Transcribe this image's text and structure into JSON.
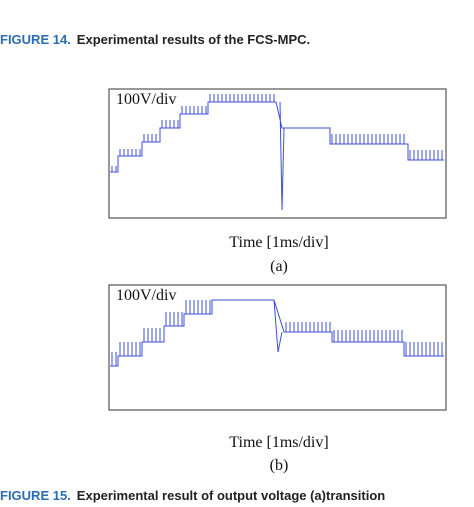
{
  "figure_14": {
    "label": "FIGURE 14.",
    "caption": "Experimental results of the FCS-MPC."
  },
  "panels": [
    {
      "scale": "100V/div",
      "x_label": "Time [1ms/div]",
      "tag": "(a)"
    },
    {
      "scale": "100V/div",
      "x_label": "Time [1ms/div]",
      "tag": "(b)"
    }
  ],
  "figure_15": {
    "label": "FIGURE 15.",
    "caption": "Experimental result of output voltage (a)transition"
  }
}
